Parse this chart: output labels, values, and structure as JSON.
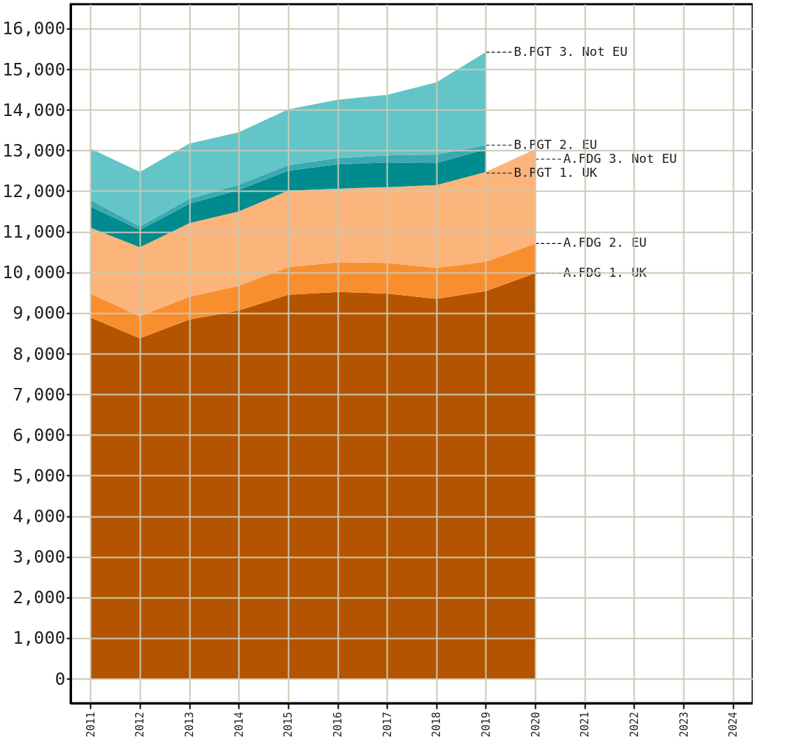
{
  "chart_data": {
    "type": "area",
    "stacked": true,
    "x": [
      2011,
      2012,
      2013,
      2014,
      2015,
      2016,
      2017,
      2018,
      2019,
      2020
    ],
    "series": [
      {
        "name": "A.FDG 1. UK",
        "color": "#b55400",
        "values": [
          8890,
          8380,
          8840,
          9060,
          9450,
          9520,
          9480,
          9350,
          9540,
          9980
        ]
      },
      {
        "name": "A.FDG 2. EU",
        "color": "#f98e2f",
        "values": [
          590,
          540,
          560,
          610,
          680,
          730,
          750,
          760,
          720,
          730
        ]
      },
      {
        "name": "A.FDG 3. Not EU",
        "color": "#fbb47a",
        "values": [
          1620,
          1700,
          1810,
          1830,
          1880,
          1810,
          1870,
          2040,
          2210,
          2320
        ]
      },
      {
        "name": "B.PGT 1. UK",
        "color": "#008b8e",
        "values": [
          520,
          430,
          480,
          530,
          490,
          600,
          610,
          540,
          560,
          null
        ]
      },
      {
        "name": "B.PGT 2. EU",
        "color": "#3aaab0",
        "values": [
          160,
          80,
          120,
          130,
          140,
          150,
          170,
          210,
          100,
          null
        ]
      },
      {
        "name": "B.PGT 3. Not EU",
        "color": "#63c5c8",
        "values": [
          1270,
          1340,
          1360,
          1290,
          1370,
          1440,
          1490,
          1780,
          2290,
          null
        ]
      }
    ],
    "xlim": [
      2010.6,
      2024.4
    ],
    "xticks": [
      2011,
      2012,
      2013,
      2014,
      2015,
      2016,
      2017,
      2018,
      2019,
      2020,
      2021,
      2022,
      2023,
      2024
    ],
    "ylim": [
      -600,
      16600
    ],
    "yticks": [
      0,
      {
        "value": 1000,
        "label": "1,000"
      },
      {
        "value": 2000,
        "label": "2,000"
      },
      {
        "value": 3000,
        "label": "3,000"
      },
      {
        "value": 4000,
        "label": "4,000"
      },
      {
        "value": 5000,
        "label": "5,000"
      },
      {
        "value": 6000,
        "label": "6,000"
      },
      {
        "value": 7000,
        "label": "7,000"
      },
      {
        "value": 8000,
        "label": "8,000"
      },
      {
        "value": 9000,
        "label": "9,000"
      },
      {
        "value": 10000,
        "label": "10,000"
      },
      {
        "value": 11000,
        "label": "11,000"
      },
      {
        "value": 12000,
        "label": "12,000"
      },
      {
        "value": 13000,
        "label": "13,000"
      },
      {
        "value": 14000,
        "label": "14,000"
      },
      {
        "value": 15000,
        "label": "15,000"
      },
      {
        "value": 16000,
        "label": "16,000"
      }
    ],
    "grid": true,
    "legend": false
  }
}
